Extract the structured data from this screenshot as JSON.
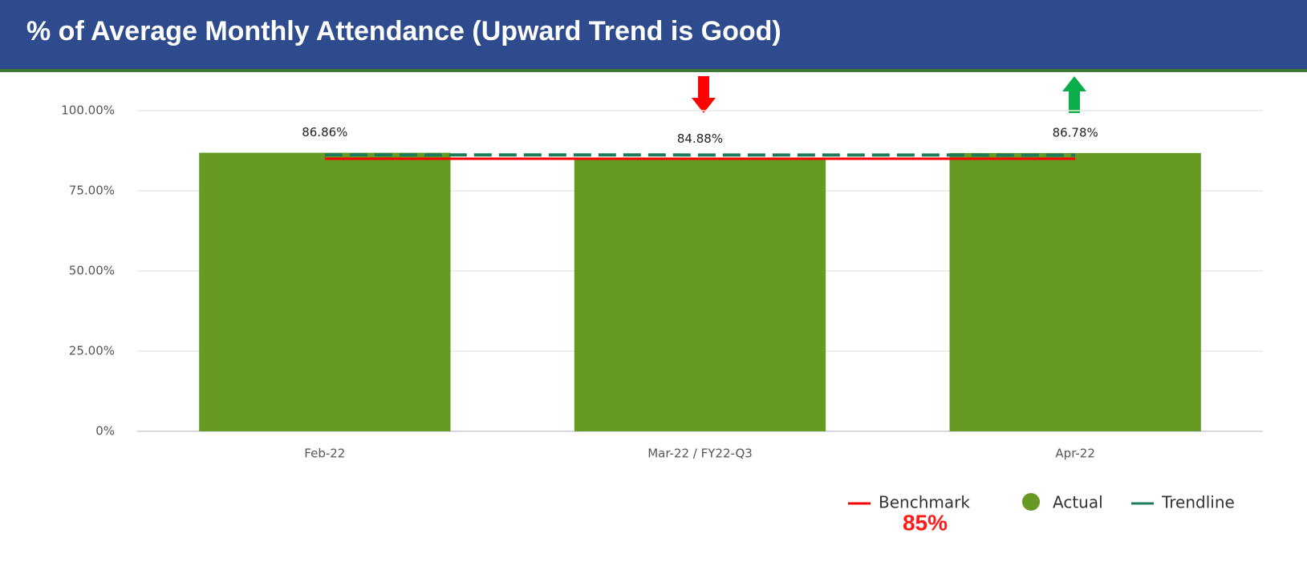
{
  "chart_data": {
    "type": "bar",
    "title": "% of Average Monthly Attendance (Upward Trend is Good)",
    "categories": [
      "Feb-22",
      "Mar-22 / FY22-Q3",
      "Apr-22"
    ],
    "series": [
      {
        "name": "Benchmark",
        "type": "line",
        "color": "#ff0000",
        "values": [
          85,
          85,
          85
        ]
      },
      {
        "name": "Actual",
        "type": "bar",
        "color": "#679a23",
        "values": [
          86.86,
          84.88,
          86.78
        ],
        "value_labels": [
          "86.86%",
          "84.88%",
          "86.78%"
        ]
      },
      {
        "name": "Trendline",
        "type": "line",
        "dashed": true,
        "color": "#1e7b5a",
        "values": [
          86.21,
          86.17,
          86.13
        ]
      }
    ],
    "annotations": [
      "85%"
    ],
    "ylim": [
      0,
      100
    ],
    "yticks": [
      {
        "value": 0,
        "label": "0%"
      },
      {
        "value": 25,
        "label": "25.00%"
      },
      {
        "value": 50,
        "label": "50.00%"
      },
      {
        "value": 75,
        "label": "75.00%"
      },
      {
        "value": 100,
        "label": "100.00%"
      }
    ],
    "grid": true
  }
}
